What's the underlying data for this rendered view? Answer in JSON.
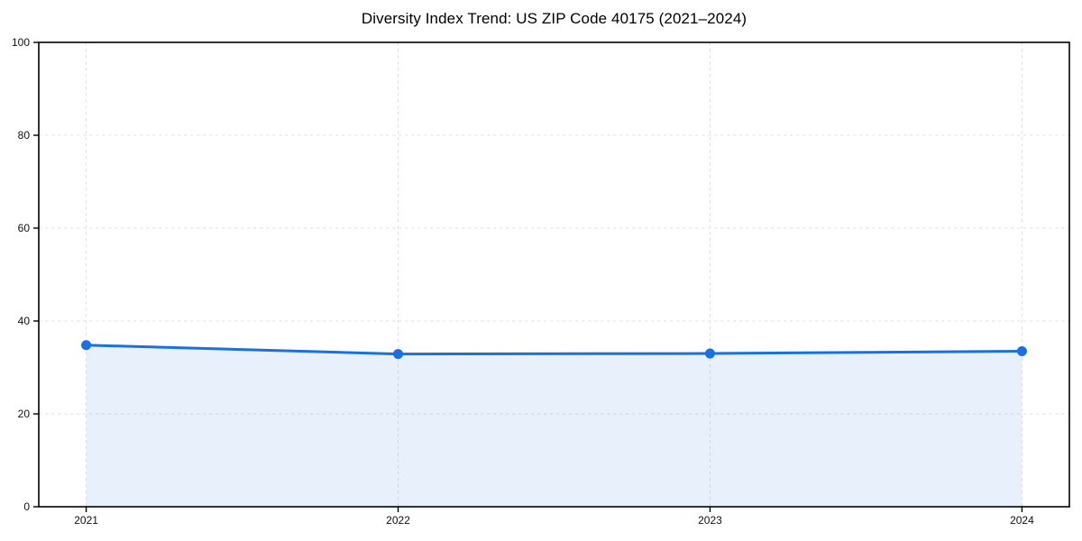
{
  "chart_data": {
    "type": "area",
    "title": "Diversity Index Trend: US ZIP Code 40175 (2021–2024)",
    "categories": [
      "2021",
      "2022",
      "2023",
      "2024"
    ],
    "series": [
      {
        "name": "Diversity Index",
        "values": [
          34.8,
          32.9,
          33.0,
          33.5
        ]
      }
    ],
    "xlabel": "",
    "ylabel": "",
    "ylim": [
      0,
      100
    ],
    "y_ticks": [
      0,
      20,
      40,
      60,
      80,
      100
    ],
    "grid": "dashed",
    "legend": "none",
    "marker": "circle",
    "colors": {
      "line": "#1a70e0",
      "marker": "#1a70e0",
      "fill": "#1a70e0",
      "fill_opacity": "0.10",
      "grid": "#e0e0e0",
      "frame": "#000000",
      "tick_text": "#111111",
      "background": "#ffffff"
    }
  }
}
